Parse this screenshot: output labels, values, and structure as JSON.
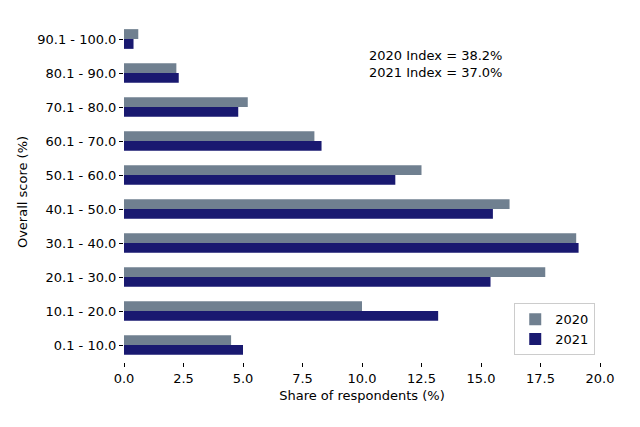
{
  "chart_data": {
    "type": "bar",
    "orientation": "horizontal",
    "x_label": "Share of respondents (%)",
    "y_label": "Overall score (%)",
    "categories": [
      "0.1 - 10.0",
      "10.1 - 20.0",
      "20.1 - 30.0",
      "30.1 - 40.0",
      "40.1 - 50.0",
      "50.1 - 60.0",
      "60.1 - 70.0",
      "70.1 - 80.0",
      "80.1 - 90.0",
      "90.1 - 100.0"
    ],
    "series": [
      {
        "name": "2020",
        "color": "#708090",
        "values": [
          4.5,
          10.0,
          17.7,
          19.0,
          16.2,
          12.5,
          8.0,
          5.2,
          2.2,
          0.6
        ]
      },
      {
        "name": "2021",
        "color": "#191970",
        "values": [
          5.0,
          13.2,
          15.4,
          19.1,
          15.5,
          11.4,
          8.3,
          4.8,
          2.3,
          0.4
        ]
      }
    ],
    "xlim": [
      0,
      20
    ],
    "xticks": [
      {
        "value": 0,
        "label": "0.0"
      },
      2.5,
      {
        "value": 5,
        "label": "5.0"
      },
      7.5,
      {
        "value": 10,
        "label": "10.0"
      },
      12.5,
      {
        "value": 15,
        "label": "15.0"
      },
      17.5,
      {
        "value": 20,
        "label": "20.0"
      }
    ],
    "annotations": [
      "2020 Index = 38.2%",
      "2021 Index = 37.0%"
    ],
    "grid": false,
    "legend": "lower right"
  }
}
